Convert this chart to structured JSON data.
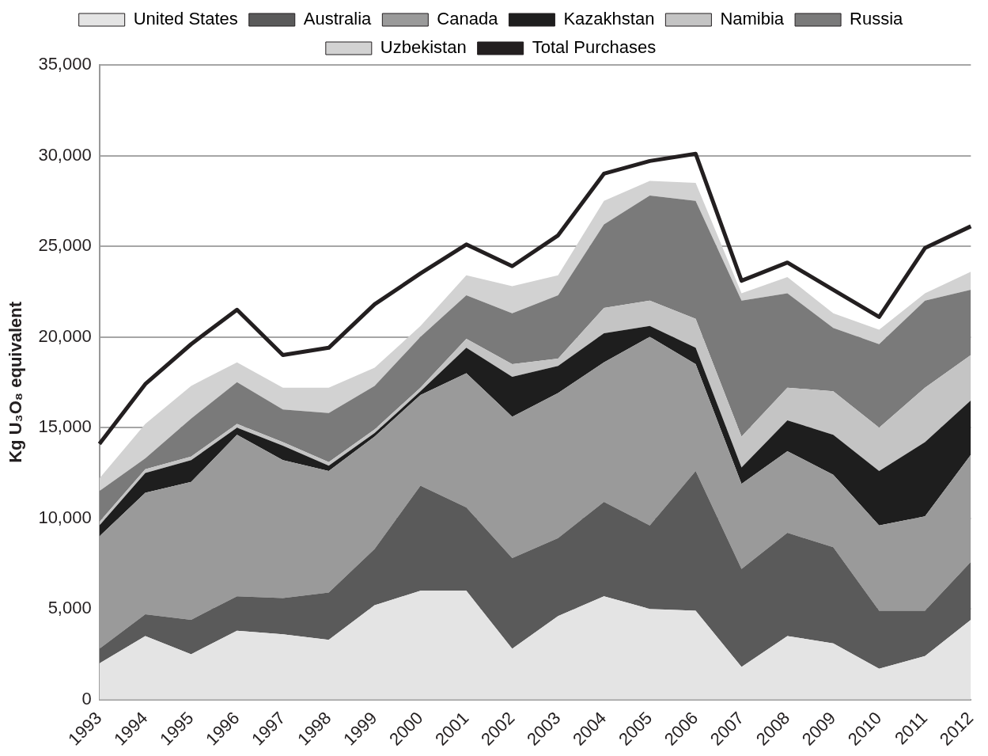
{
  "chart_data": {
    "type": "area",
    "stacked": true,
    "ylabel": "Kg U₃O₈ equivalent",
    "categories": [
      "1993",
      "1994",
      "1995",
      "1996",
      "1997",
      "1998",
      "1999",
      "2000",
      "2001",
      "2002",
      "2003",
      "2004",
      "2005",
      "2006",
      "2007",
      "2008",
      "2009",
      "2010",
      "2011",
      "2012"
    ],
    "series": [
      {
        "name": "United States",
        "color": "#e4e4e4",
        "values": [
          2000,
          3500,
          2500,
          3800,
          3600,
          3300,
          5200,
          6000,
          6000,
          2800,
          4600,
          5700,
          5000,
          4900,
          1800,
          3500,
          3100,
          1700,
          2400,
          4400
        ]
      },
      {
        "name": "Australia",
        "color": "#5a5a5a",
        "values": [
          800,
          1200,
          1900,
          1900,
          2000,
          2600,
          3100,
          5800,
          4600,
          5000,
          4300,
          5200,
          4600,
          7700,
          5400,
          5700,
          5300,
          3200,
          2500,
          3200
        ]
      },
      {
        "name": "Canada",
        "color": "#9a9a9a",
        "values": [
          6200,
          6700,
          7600,
          8900,
          7600,
          6700,
          6200,
          5000,
          7400,
          7800,
          8000,
          7700,
          10400,
          5900,
          4700,
          4500,
          4000,
          4700,
          5200,
          5900
        ]
      },
      {
        "name": "Kazakhstan",
        "color": "#1e1e1e",
        "values": [
          600,
          1100,
          1200,
          400,
          800,
          300,
          200,
          200,
          1400,
          2200,
          1500,
          1600,
          600,
          900,
          900,
          1700,
          2200,
          3000,
          4100,
          3000
        ]
      },
      {
        "name": "Namibia",
        "color": "#c4c4c4",
        "values": [
          200,
          200,
          200,
          200,
          200,
          200,
          200,
          200,
          500,
          700,
          400,
          1400,
          1400,
          1600,
          1700,
          1800,
          2400,
          2400,
          3000,
          2500
        ]
      },
      {
        "name": "Russia",
        "color": "#7a7a7a",
        "values": [
          1700,
          600,
          2100,
          2300,
          1800,
          2700,
          2400,
          2800,
          2400,
          2800,
          3500,
          4600,
          5800,
          6500,
          7500,
          5200,
          3500,
          4600,
          4800,
          3600
        ]
      },
      {
        "name": "Uzbekistan",
        "color": "#d2d2d2",
        "values": [
          700,
          1900,
          1800,
          1100,
          1200,
          1400,
          1000,
          600,
          1100,
          1500,
          1100,
          1300,
          800,
          1000,
          400,
          900,
          800,
          800,
          400,
          1000
        ]
      },
      {
        "name": "Total Purchases",
        "type": "line",
        "color": "#231f20",
        "values": [
          14100,
          17400,
          19600,
          21500,
          19000,
          19400,
          21800,
          23500,
          25100,
          23900,
          25600,
          29000,
          29700,
          30100,
          23100,
          24100,
          22600,
          21100,
          24900,
          26100
        ]
      }
    ],
    "ylim": [
      0,
      35000
    ],
    "yticks": [
      {
        "value": 0,
        "label": "0"
      },
      {
        "value": 5000,
        "label": "5,000"
      },
      {
        "value": 10000,
        "label": "10,000"
      },
      {
        "value": 15000,
        "label": "15,000"
      },
      {
        "value": 20000,
        "label": "20,000"
      },
      {
        "value": 25000,
        "label": "25,000"
      },
      {
        "value": 30000,
        "label": "30,000"
      },
      {
        "value": 35000,
        "label": "35,000"
      }
    ],
    "grid": "y",
    "legend": "top",
    "marker": "none"
  }
}
